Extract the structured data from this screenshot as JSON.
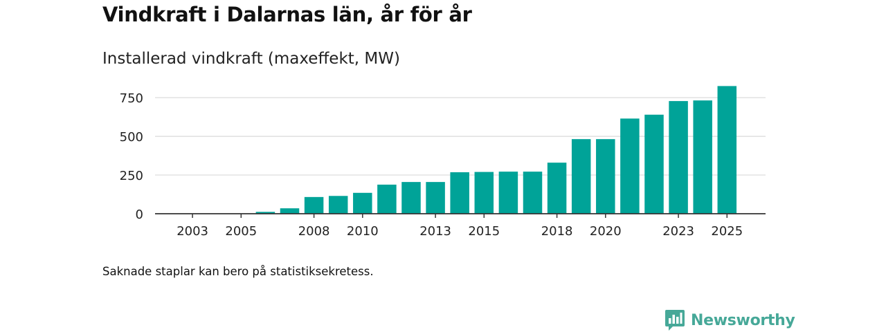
{
  "header": {
    "title": "Vindkraft i Dalarnas län, år för år",
    "subtitle": "Installerad vindkraft (maxeffekt, MW)"
  },
  "footnote": "Saknade staplar kan bero på statistiksekretess.",
  "brand": {
    "name": "Newsworthy"
  },
  "colors": {
    "bar": "#00a398",
    "grid": "#d9d9d9",
    "axis": "#333333",
    "brand": "#46a898"
  },
  "chart_data": {
    "type": "bar",
    "title": "Installerad vindkraft (maxeffekt, MW)",
    "xlabel": "",
    "ylabel": "",
    "ylim": [
      0,
      800
    ],
    "yticks": [
      0,
      250,
      500,
      750
    ],
    "categories": [
      "2002",
      "2003",
      "2004",
      "2005",
      "2006",
      "2007",
      "2008",
      "2009",
      "2010",
      "2011",
      "2012",
      "2013",
      "2014",
      "2015",
      "2016",
      "2017",
      "2018",
      "2019",
      "2020",
      "2021",
      "2022",
      "2023",
      "2024",
      "2025"
    ],
    "xtick_labels": [
      "2003",
      "2005",
      "2008",
      "2010",
      "2013",
      "2015",
      "2018",
      "2020",
      "2023",
      "2025"
    ],
    "values": [
      0,
      0,
      0,
      0,
      12,
      35,
      108,
      115,
      135,
      188,
      205,
      205,
      268,
      270,
      272,
      272,
      330,
      482,
      482,
      615,
      640,
      728,
      732,
      825
    ],
    "grid": true,
    "legend": "none"
  }
}
